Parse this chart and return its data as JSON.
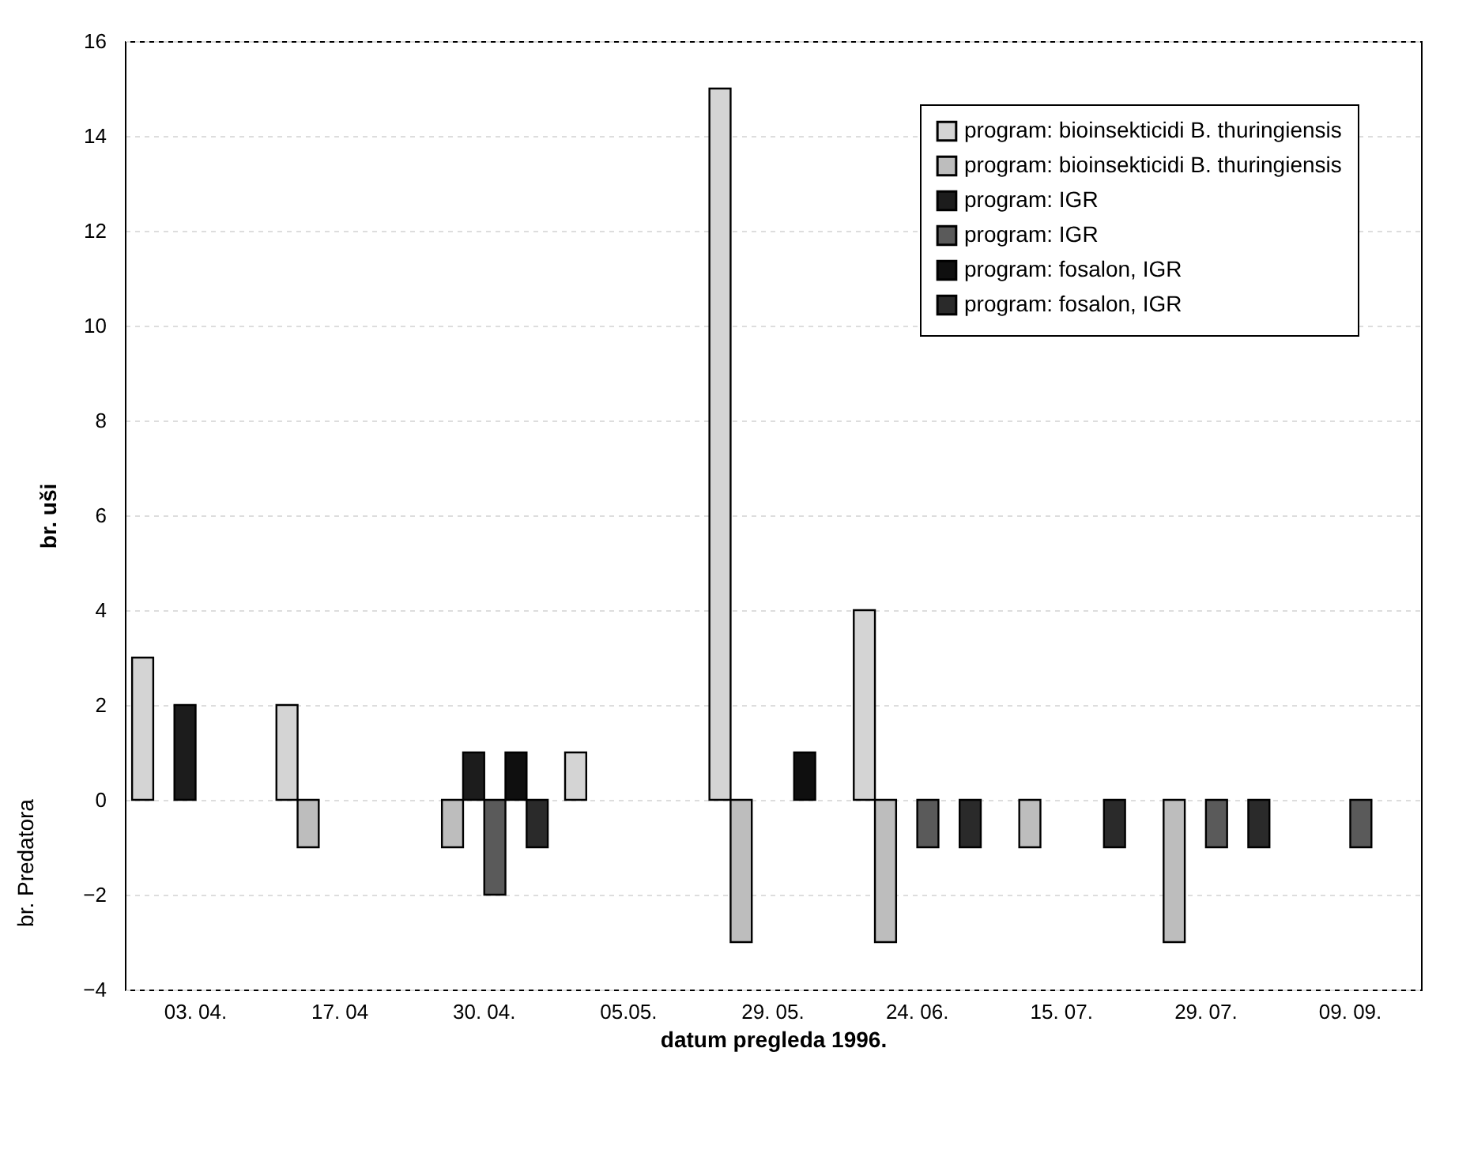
{
  "chart_data": {
    "type": "bar",
    "xlabel": "datum pregleda 1996.",
    "ylabel": "br. uši",
    "annotations": [
      "br. Predatora"
    ],
    "categories": [
      "03. 04.",
      "17. 04",
      "30. 04.",
      "05.05.",
      "29. 05.",
      "24. 06.",
      "15. 07.",
      "29. 07.",
      "09. 09."
    ],
    "series": [
      {
        "name": "program: bioinsekticidi B. thuringiensis",
        "color": "#d4d4d4",
        "values": [
          3,
          2,
          null,
          1,
          15,
          4,
          null,
          null,
          null
        ]
      },
      {
        "name": "program: bioinsekticidi B. thuringiensis",
        "color": "#bdbdbd",
        "values": [
          null,
          -1,
          -1,
          null,
          -3,
          -3,
          -1,
          -3,
          null
        ]
      },
      {
        "name": "program: IGR",
        "color": "#1c1c1c",
        "values": [
          2,
          null,
          1,
          null,
          null,
          null,
          null,
          null,
          null
        ]
      },
      {
        "name": "program: IGR",
        "color": "#5a5a5a",
        "values": [
          null,
          null,
          -2,
          null,
          null,
          -1,
          null,
          -1,
          -1
        ]
      },
      {
        "name": "program: fosalon, IGR",
        "color": "#0f0f0f",
        "values": [
          null,
          null,
          1,
          null,
          1,
          null,
          null,
          null,
          null
        ]
      },
      {
        "name": "program: fosalon, IGR",
        "color": "#2a2a2a",
        "values": [
          null,
          null,
          -1,
          null,
          null,
          -1,
          -1,
          -1,
          null
        ]
      }
    ],
    "ylim": [
      -4,
      16
    ],
    "yticks": [
      -4,
      -2,
      0,
      2,
      4,
      6,
      8,
      10,
      12,
      14,
      16
    ],
    "grid": "y",
    "legend": "top right"
  }
}
